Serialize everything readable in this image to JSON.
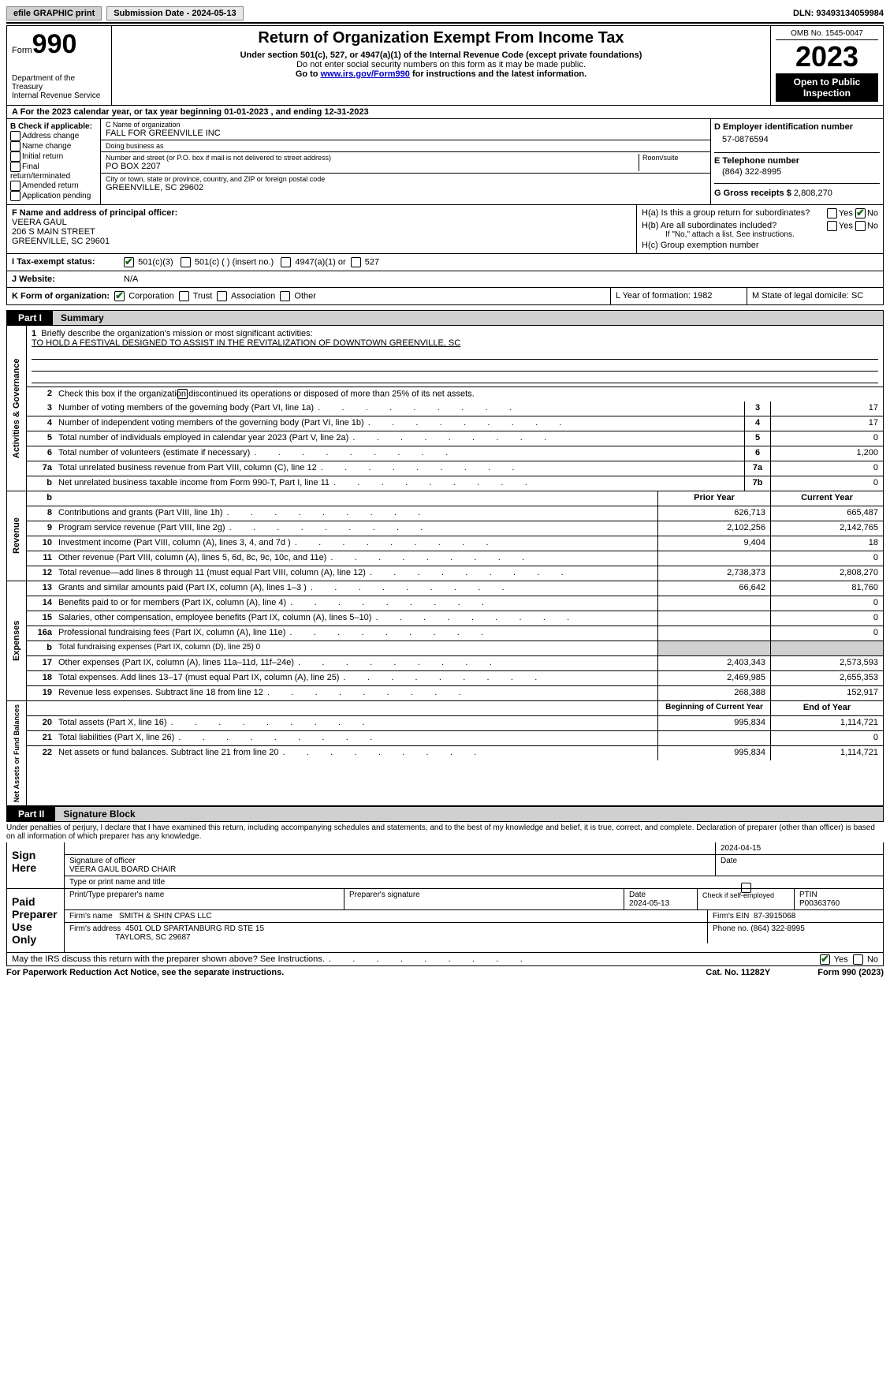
{
  "topbar": {
    "efile": "efile GRAPHIC print",
    "submission": "Submission Date - 2024-05-13",
    "dln": "DLN: 93493134059984"
  },
  "header": {
    "form_label": "Form",
    "form_no": "990",
    "dept": "Department of the Treasury\nInternal Revenue Service",
    "title": "Return of Organization Exempt From Income Tax",
    "sub1": "Under section 501(c), 527, or 4947(a)(1) of the Internal Revenue Code (except private foundations)",
    "sub2": "Do not enter social security numbers on this form as it may be made public.",
    "sub3_pre": "Go to ",
    "sub3_link": "www.irs.gov/Form990",
    "sub3_post": " for instructions and the latest information.",
    "omb": "OMB No. 1545-0047",
    "year": "2023",
    "open": "Open to Public Inspection"
  },
  "rowA": "For the 2023 calendar year, or tax year beginning 01-01-2023    , and ending 12-31-2023",
  "boxB": {
    "lbl": "B Check if applicable:",
    "items": [
      "Address change",
      "Name change",
      "Initial return",
      "Final return/terminated",
      "Amended return",
      "Application pending"
    ]
  },
  "boxC": {
    "name_lbl": "C Name of organization",
    "name": "FALL FOR GREENVILLE INC",
    "dba_lbl": "Doing business as",
    "dba": "",
    "street_lbl": "Number and street (or P.O. box if mail is not delivered to street address)",
    "room_lbl": "Room/suite",
    "street": "PO BOX 2207",
    "city_lbl": "City or town, state or province, country, and ZIP or foreign postal code",
    "city": "GREENVILLE, SC  29602"
  },
  "boxD": {
    "lbl": "D Employer identification number",
    "val": "57-0876594"
  },
  "boxE": {
    "lbl": "E Telephone number",
    "val": "(864) 322-8995"
  },
  "boxG": {
    "lbl": "G Gross receipts $",
    "val": "2,808,270"
  },
  "boxF": {
    "lbl": "F  Name and address of principal officer:",
    "name": "VEERA GAUL",
    "addr1": "206 S MAIN STREET",
    "addr2": "GREENVILLE, SC  29601"
  },
  "boxH": {
    "a": "H(a)  Is this a group return for subordinates?",
    "b": "H(b)  Are all subordinates included?",
    "b_note": "If \"No,\" attach a list. See instructions.",
    "c": "H(c)  Group exemption number",
    "yes": "Yes",
    "no": "No"
  },
  "rowI": {
    "lbl": "I    Tax-exempt status:",
    "opts": [
      "501(c)(3)",
      "501(c) (  ) (insert no.)",
      "4947(a)(1) or",
      "527"
    ]
  },
  "rowJ": {
    "lbl": "J    Website:",
    "val": "N/A"
  },
  "rowK": {
    "lbl": "K Form of organization:",
    "opts": [
      "Corporation",
      "Trust",
      "Association",
      "Other"
    ],
    "L": "L Year of formation: 1982",
    "M": "M State of legal domicile: SC"
  },
  "part1": {
    "label": "Part I",
    "title": "Summary"
  },
  "mission": {
    "q": "Briefly describe the organization's mission or most significant activities:",
    "a": "TO HOLD A FESTIVAL DESIGNED TO ASSIST IN THE REVITALIZATION OF DOWNTOWN GREENVILLE, SC"
  },
  "gov": {
    "vlabel": "Activities & Governance",
    "line2": "Check this box          if the organization discontinued its operations or disposed of more than 25% of its net assets.",
    "rows": [
      {
        "n": "3",
        "d": "Number of voting members of the governing body (Part VI, line 1a)",
        "v": "17"
      },
      {
        "n": "4",
        "d": "Number of independent voting members of the governing body (Part VI, line 1b)",
        "v": "17"
      },
      {
        "n": "5",
        "d": "Total number of individuals employed in calendar year 2023 (Part V, line 2a)",
        "v": "0"
      },
      {
        "n": "6",
        "d": "Total number of volunteers (estimate if necessary)",
        "v": "1,200"
      },
      {
        "n": "7a",
        "d": "Total unrelated business revenue from Part VIII, column (C), line 12",
        "v": "0"
      },
      {
        "n": "b",
        "d": "Net unrelated business taxable income from Form 990-T, Part I, line 11",
        "nc": "7b",
        "v": "0"
      }
    ]
  },
  "revenue": {
    "vlabel": "Revenue",
    "hdr_prior": "Prior Year",
    "hdr_curr": "Current Year",
    "rows": [
      {
        "n": "8",
        "d": "Contributions and grants (Part VIII, line 1h)",
        "p": "626,713",
        "c": "665,487"
      },
      {
        "n": "9",
        "d": "Program service revenue (Part VIII, line 2g)",
        "p": "2,102,256",
        "c": "2,142,765"
      },
      {
        "n": "10",
        "d": "Investment income (Part VIII, column (A), lines 3, 4, and 7d )",
        "p": "9,404",
        "c": "18"
      },
      {
        "n": "11",
        "d": "Other revenue (Part VIII, column (A), lines 5, 6d, 8c, 9c, 10c, and 11e)",
        "p": "",
        "c": "0"
      },
      {
        "n": "12",
        "d": "Total revenue—add lines 8 through 11 (must equal Part VIII, column (A), line 12)",
        "p": "2,738,373",
        "c": "2,808,270"
      }
    ]
  },
  "expenses": {
    "vlabel": "Expenses",
    "rows": [
      {
        "n": "13",
        "d": "Grants and similar amounts paid (Part IX, column (A), lines 1–3 )",
        "p": "66,642",
        "c": "81,760"
      },
      {
        "n": "14",
        "d": "Benefits paid to or for members (Part IX, column (A), line 4)",
        "p": "",
        "c": "0"
      },
      {
        "n": "15",
        "d": "Salaries, other compensation, employee benefits (Part IX, column (A), lines 5–10)",
        "p": "",
        "c": "0"
      },
      {
        "n": "16a",
        "d": "Professional fundraising fees (Part IX, column (A), line 11e)",
        "p": "",
        "c": "0"
      },
      {
        "n": "b",
        "d": "Total fundraising expenses (Part IX, column (D), line 25) 0",
        "grey": true
      },
      {
        "n": "17",
        "d": "Other expenses (Part IX, column (A), lines 11a–11d, 11f–24e)",
        "p": "2,403,343",
        "c": "2,573,593"
      },
      {
        "n": "18",
        "d": "Total expenses. Add lines 13–17 (must equal Part IX, column (A), line 25)",
        "p": "2,469,985",
        "c": "2,655,353"
      },
      {
        "n": "19",
        "d": "Revenue less expenses. Subtract line 18 from line 12",
        "p": "268,388",
        "c": "152,917"
      }
    ]
  },
  "netassets": {
    "vlabel": "Net Assets or Fund Balances",
    "hdr_b": "Beginning of Current Year",
    "hdr_e": "End of Year",
    "rows": [
      {
        "n": "20",
        "d": "Total assets (Part X, line 16)",
        "p": "995,834",
        "c": "1,114,721"
      },
      {
        "n": "21",
        "d": "Total liabilities (Part X, line 26)",
        "p": "",
        "c": "0"
      },
      {
        "n": "22",
        "d": "Net assets or fund balances. Subtract line 21 from line 20",
        "p": "995,834",
        "c": "1,114,721"
      }
    ]
  },
  "part2": {
    "label": "Part II",
    "title": "Signature Block"
  },
  "penalties": "Under penalties of perjury, I declare that I have examined this return, including accompanying schedules and statements, and to the best of my knowledge and belief, it is true, correct, and complete. Declaration of preparer (other than officer) is based on all information of which preparer has any knowledge.",
  "sign": {
    "lbl": "Sign Here",
    "date": "2024-04-15",
    "sig_lbl": "Signature of officer",
    "name": "VEERA GAUL BOARD CHAIR",
    "type_lbl": "Type or print name and title",
    "date_lbl": "Date"
  },
  "paid": {
    "lbl": "Paid Preparer Use Only",
    "h1": "Print/Type preparer's name",
    "h2": "Preparer's signature",
    "h3": "Date",
    "date": "2024-05-13",
    "h4": "Check          if self-employed",
    "h5": "PTIN",
    "ptin": "P00363760",
    "firm_lbl": "Firm's name",
    "firm": "SMITH & SHIN CPAS LLC",
    "ein_lbl": "Firm's EIN",
    "ein": "87-3915068",
    "addr_lbl": "Firm's address",
    "addr1": "4501 OLD SPARTANBURG RD STE 15",
    "addr2": "TAYLORS, SC  29687",
    "phone_lbl": "Phone no.",
    "phone": "(864) 322-8995"
  },
  "discuss": {
    "q": "May the IRS discuss this return with the preparer shown above? See Instructions.",
    "yes": "Yes",
    "no": "No"
  },
  "foot": {
    "l": "For Paperwork Reduction Act Notice, see the separate instructions.",
    "m": "Cat. No. 11282Y",
    "r": "Form 990 (2023)"
  }
}
